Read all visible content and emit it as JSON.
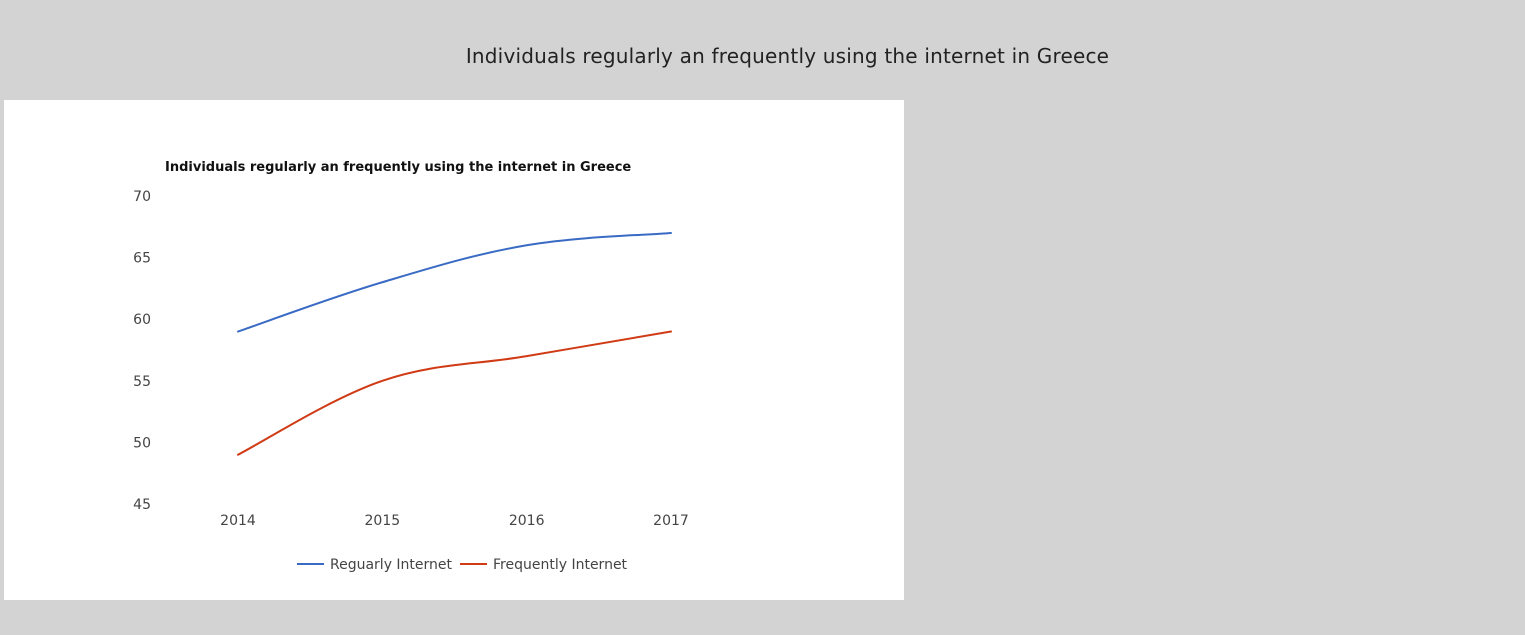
{
  "page": {
    "title": "Individuals regularly an frequently using the internet in Greece"
  },
  "chart_data": {
    "type": "line",
    "title": "Individuals regularly an frequently using the internet in Greece",
    "xlabel": "",
    "ylabel": "",
    "x": [
      "2014",
      "2015",
      "2016",
      "2017"
    ],
    "ylim": [
      45,
      70
    ],
    "yticks": [
      45,
      50,
      55,
      60,
      65,
      70
    ],
    "grid": false,
    "legend_position": "bottom",
    "series": [
      {
        "name": "Reguarly Internet",
        "values": [
          59,
          63,
          66,
          67
        ],
        "color": "#3a6bc4"
      },
      {
        "name": "Frequently Internet",
        "values": [
          49,
          55,
          57,
          59
        ],
        "color": "#d03a14"
      }
    ]
  }
}
